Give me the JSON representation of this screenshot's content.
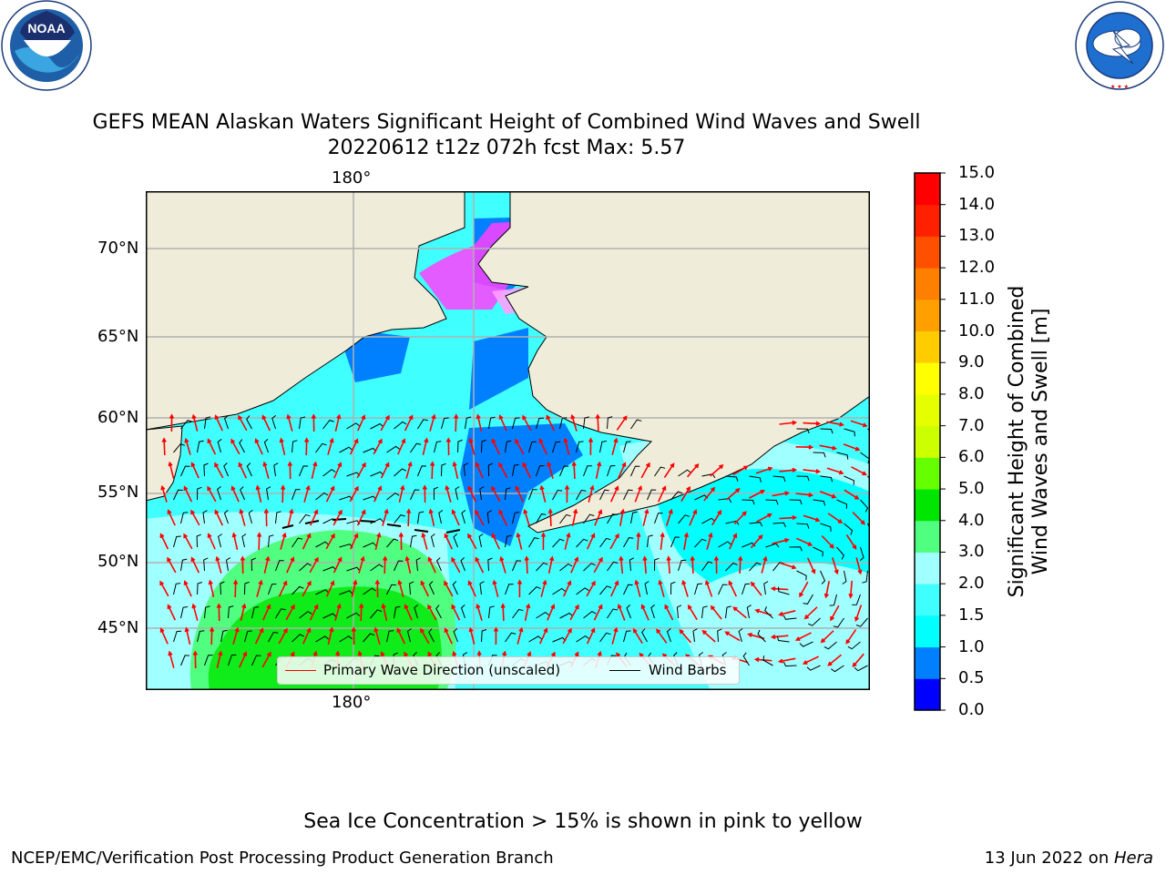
{
  "header": {
    "title_line1": "GEFS MEAN Alaskan Waters Significant Height of Combined Wind Waves and Swell",
    "title_line2": "20220612 t12z 072h fcst   Max: 5.57"
  },
  "logos": {
    "left": {
      "name": "noaa-logo",
      "text": "NOAA",
      "ring_text": "NATIONAL OCEANIC AND ATMOSPHERIC ADMINISTRATION · U.S. DEPARTMENT OF COMMERCE"
    },
    "right": {
      "name": "nws-logo",
      "ring_text": "NATIONAL WEATHER SERVICE"
    }
  },
  "map": {
    "lon_top_label": "180°",
    "lon_bottom_label": "180°",
    "lat_labels": [
      "70°N",
      "65°N",
      "60°N",
      "55°N",
      "50°N",
      "45°N"
    ],
    "colors": {
      "land": "#efedda",
      "coast": "#000000",
      "grid": "#b0b0b0",
      "arrow": "#ff0000",
      "barb": "#000000"
    }
  },
  "legend": {
    "wave_label": "Primary Wave Direction (unscaled)",
    "barb_label": "Wind Barbs"
  },
  "colorbar": {
    "title_line1": "Significant Height of Combined",
    "title_line2": "Wind Waves and Swell [m]",
    "ticks": [
      "0.0",
      "0.5",
      "1.0",
      "1.5",
      "2.0",
      "3.0",
      "4.0",
      "5.0",
      "6.0",
      "7.0",
      "8.0",
      "9.0",
      "10.0",
      "11.0",
      "12.0",
      "13.0",
      "14.0",
      "15.0"
    ],
    "colors": [
      "#0000ff",
      "#0080ff",
      "#00ffff",
      "#40ffff",
      "#a0ffff",
      "#50ff80",
      "#00e600",
      "#66ff00",
      "#ccff00",
      "#e6ff00",
      "#ffff00",
      "#ffcc00",
      "#ffa000",
      "#ff8000",
      "#ff5000",
      "#ff2000",
      "#ff0000"
    ]
  },
  "footer": {
    "note": "Sea Ice Concentration > 15% is shown in pink to yellow",
    "left": "NCEP/EMC/Verification Post Processing Product Generation Branch",
    "right_date": "13 Jun 2022 on ",
    "right_host": "Hera"
  }
}
